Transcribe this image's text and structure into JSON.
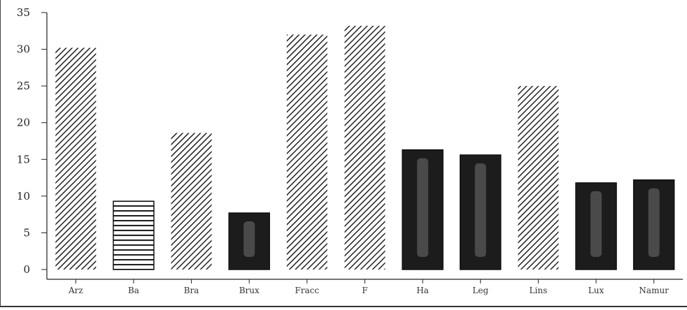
{
  "chart_data": {
    "type": "bar",
    "title": "",
    "xlabel": "",
    "ylabel": "",
    "ylim": [
      0,
      35
    ],
    "yticks": [
      0,
      5,
      10,
      15,
      20,
      25,
      30,
      35
    ],
    "grid": false,
    "legend": "none",
    "categories": [
      "Arz",
      "Ba",
      "Bra",
      "Brux",
      "Fracc",
      "F",
      "Ha",
      "Leg",
      "Lins",
      "Lux",
      "Namur"
    ],
    "values": [
      30.2,
      9.3,
      18.6,
      7.7,
      32.0,
      33.2,
      16.3,
      15.6,
      25.0,
      11.8,
      12.2
    ],
    "styles": [
      "hatch",
      "horizontal-lines",
      "hatch",
      "solid",
      "hatch",
      "hatch",
      "solid",
      "solid",
      "hatch",
      "solid",
      "solid"
    ],
    "colors": {
      "hatch_stroke": "#222222",
      "solid_fill": "#1c1c1c",
      "solid_highlight": "#4a4a4a",
      "axis": "#222222"
    }
  }
}
